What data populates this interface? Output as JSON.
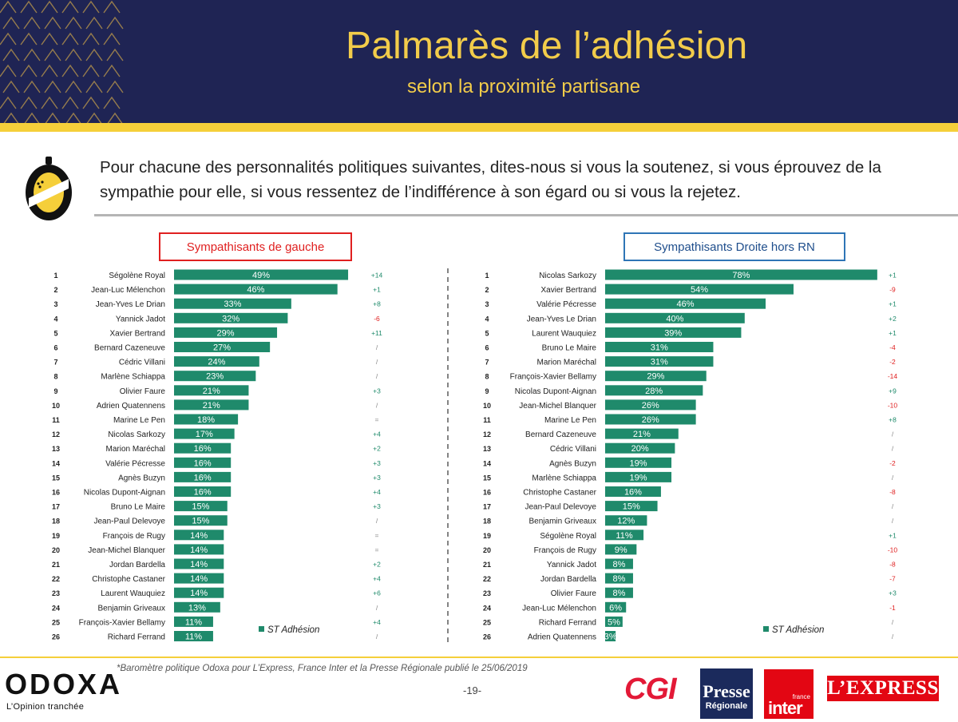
{
  "header": {
    "title": "Palmarès de l’adhésion",
    "subtitle": "selon la proximité partisane"
  },
  "question": "Pour chacune des personnalités politiques suivantes, dites-nous si vous la soutenez, si vous éprouvez de la sympathie pour elle, si vous ressentez de l’indifférence à son égard ou si vous la rejetez.",
  "footer": {
    "source": "*Baromètre politique Odoxa pour L’Express, France Inter et la Presse Régionale publié le 25/06/2019",
    "page": "-19-",
    "odoxa_name": "ODOXA",
    "odoxa_tagline": "L’Opinion tranchée",
    "cgi": "CGI",
    "presse_line1": "Presse",
    "presse_line2": "Régionale",
    "inter_top": "france",
    "inter_word": "inter",
    "express": "L’EXPRESS"
  },
  "colors": {
    "bar": "#1f8a6b",
    "header_bg": "#1f2454",
    "accent_yellow": "#f5cf3a",
    "left_frame": "#e02020",
    "right_frame": "#2e75b6",
    "positive": "#1f8a6b",
    "negative": "#e02020",
    "neutral": "#888888"
  },
  "chart_data": [
    {
      "type": "bar",
      "title": "Sympathisants de gauche",
      "legend": "ST Adhésion",
      "value_unit": "%",
      "ranks": [
        1,
        2,
        3,
        4,
        5,
        6,
        7,
        8,
        9,
        10,
        11,
        12,
        13,
        14,
        15,
        16,
        17,
        18,
        19,
        20,
        21,
        22,
        23,
        24,
        25,
        26
      ],
      "categories": [
        "Ségolène Royal",
        "Jean-Luc Mélenchon",
        "Jean-Yves Le Drian",
        "Yannick Jadot",
        "Xavier Bertrand",
        "Bernard Cazeneuve",
        "Cédric Villani",
        "Marlène Schiappa",
        "Olivier Faure",
        "Adrien Quatennens",
        "Marine Le Pen",
        "Nicolas Sarkozy",
        "Marion Maréchal",
        "Valérie Pécresse",
        "Agnès Buzyn",
        "Nicolas Dupont-Aignan",
        "Bruno Le Maire",
        "Jean-Paul Delevoye",
        "François de Rugy",
        "Jean-Michel Blanquer",
        "Jordan Bardella",
        "Christophe Castaner",
        "Laurent Wauquiez",
        "Benjamin Griveaux",
        "François-Xavier Bellamy",
        "Richard Ferrand"
      ],
      "values": [
        49,
        46,
        33,
        32,
        29,
        27,
        24,
        23,
        21,
        21,
        18,
        17,
        16,
        16,
        16,
        16,
        15,
        15,
        14,
        14,
        14,
        14,
        14,
        13,
        11,
        11
      ],
      "changes": [
        "+14",
        "+1",
        "+8",
        "-6",
        "+11",
        "/",
        "/",
        "/",
        "+3",
        "/",
        "=",
        "+4",
        "+2",
        "+3",
        "+3",
        "+4",
        "+3",
        "/",
        "=",
        "=",
        "+2",
        "+4",
        "+6",
        "/",
        "+4",
        "/"
      ]
    },
    {
      "type": "bar",
      "title": "Sympathisants Droite hors RN",
      "legend": "ST Adhésion",
      "value_unit": "%",
      "ranks": [
        1,
        2,
        3,
        4,
        5,
        6,
        7,
        8,
        9,
        10,
        11,
        12,
        13,
        14,
        15,
        16,
        17,
        18,
        19,
        20,
        21,
        22,
        23,
        24,
        25,
        26
      ],
      "categories": [
        "Nicolas Sarkozy",
        "Xavier Bertrand",
        "Valérie Pécresse",
        "Jean-Yves Le Drian",
        "Laurent Wauquiez",
        "Bruno Le Maire",
        "Marion Maréchal",
        "François-Xavier Bellamy",
        "Nicolas Dupont-Aignan",
        "Jean-Michel Blanquer",
        "Marine Le Pen",
        "Bernard Cazeneuve",
        "Cédric Villani",
        "Agnès Buzyn",
        "Marlène Schiappa",
        "Christophe Castaner",
        "Jean-Paul Delevoye",
        "Benjamin Griveaux",
        "Ségolène Royal",
        "François de Rugy",
        "Yannick Jadot",
        "Jordan Bardella",
        "Olivier Faure",
        "Jean-Luc Mélenchon",
        "Richard Ferrand",
        "Adrien Quatennens"
      ],
      "values": [
        78,
        54,
        46,
        40,
        39,
        31,
        31,
        29,
        28,
        26,
        26,
        21,
        20,
        19,
        19,
        16,
        15,
        12,
        11,
        9,
        8,
        8,
        8,
        6,
        5,
        3
      ],
      "changes": [
        "+1",
        "-9",
        "+1",
        "+2",
        "+1",
        "-4",
        "-2",
        "-14",
        "+9",
        "-10",
        "+8",
        "/",
        "/",
        "-2",
        "/",
        "-8",
        "/",
        "/",
        "+1",
        "-10",
        "-8",
        "-7",
        "+3",
        "-1",
        "/",
        "/"
      ]
    }
  ]
}
